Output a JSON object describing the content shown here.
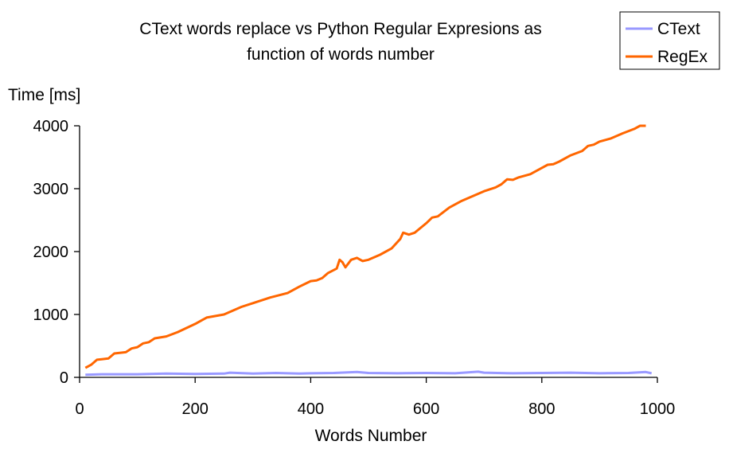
{
  "chart_data": {
    "type": "line",
    "title_line1": "CText words replace vs Python Regular Expresions as",
    "title_line2": "function of words number",
    "xlabel": "Words Number",
    "ylabel": "Time [ms]",
    "xlim": [
      0,
      1000
    ],
    "ylim": [
      0,
      4000
    ],
    "x_ticks": [
      0,
      200,
      400,
      600,
      800,
      1000
    ],
    "y_ticks": [
      0,
      1000,
      2000,
      3000,
      4000
    ],
    "grid": false,
    "legend_position": "top-right",
    "series": [
      {
        "name": "CText",
        "color": "#9999ff",
        "points": [
          [
            10,
            40
          ],
          [
            40,
            50
          ],
          [
            100,
            50
          ],
          [
            150,
            60
          ],
          [
            200,
            55
          ],
          [
            250,
            60
          ],
          [
            260,
            75
          ],
          [
            300,
            60
          ],
          [
            340,
            70
          ],
          [
            380,
            60
          ],
          [
            400,
            65
          ],
          [
            440,
            70
          ],
          [
            480,
            85
          ],
          [
            500,
            70
          ],
          [
            550,
            65
          ],
          [
            600,
            70
          ],
          [
            650,
            65
          ],
          [
            690,
            90
          ],
          [
            700,
            75
          ],
          [
            750,
            65
          ],
          [
            800,
            70
          ],
          [
            850,
            75
          ],
          [
            900,
            65
          ],
          [
            950,
            70
          ],
          [
            980,
            85
          ],
          [
            990,
            65
          ]
        ]
      },
      {
        "name": "RegEx",
        "color": "#ff6600",
        "points": [
          [
            10,
            150
          ],
          [
            20,
            200
          ],
          [
            30,
            280
          ],
          [
            50,
            300
          ],
          [
            60,
            380
          ],
          [
            80,
            400
          ],
          [
            90,
            460
          ],
          [
            100,
            480
          ],
          [
            110,
            540
          ],
          [
            120,
            560
          ],
          [
            130,
            620
          ],
          [
            150,
            650
          ],
          [
            170,
            720
          ],
          [
            200,
            850
          ],
          [
            220,
            950
          ],
          [
            250,
            1000
          ],
          [
            280,
            1120
          ],
          [
            300,
            1180
          ],
          [
            330,
            1270
          ],
          [
            360,
            1340
          ],
          [
            380,
            1440
          ],
          [
            400,
            1530
          ],
          [
            410,
            1540
          ],
          [
            420,
            1580
          ],
          [
            430,
            1660
          ],
          [
            445,
            1730
          ],
          [
            450,
            1870
          ],
          [
            455,
            1830
          ],
          [
            460,
            1750
          ],
          [
            470,
            1870
          ],
          [
            480,
            1900
          ],
          [
            490,
            1850
          ],
          [
            500,
            1870
          ],
          [
            520,
            1950
          ],
          [
            540,
            2050
          ],
          [
            555,
            2200
          ],
          [
            560,
            2300
          ],
          [
            570,
            2270
          ],
          [
            580,
            2300
          ],
          [
            600,
            2450
          ],
          [
            610,
            2540
          ],
          [
            620,
            2560
          ],
          [
            640,
            2700
          ],
          [
            660,
            2800
          ],
          [
            680,
            2880
          ],
          [
            700,
            2960
          ],
          [
            720,
            3020
          ],
          [
            730,
            3070
          ],
          [
            740,
            3150
          ],
          [
            750,
            3140
          ],
          [
            760,
            3180
          ],
          [
            780,
            3230
          ],
          [
            800,
            3330
          ],
          [
            810,
            3380
          ],
          [
            820,
            3390
          ],
          [
            830,
            3430
          ],
          [
            850,
            3530
          ],
          [
            870,
            3600
          ],
          [
            880,
            3680
          ],
          [
            890,
            3700
          ],
          [
            900,
            3750
          ],
          [
            920,
            3800
          ],
          [
            940,
            3880
          ],
          [
            960,
            3950
          ],
          [
            970,
            4000
          ],
          [
            980,
            4000
          ]
        ]
      }
    ]
  }
}
